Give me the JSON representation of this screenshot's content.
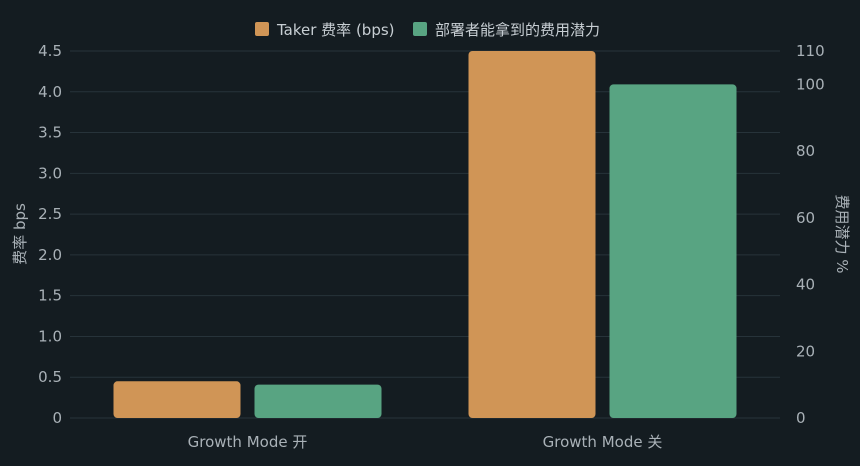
{
  "chart_data": {
    "type": "bar",
    "categories": [
      "Growth Mode 开",
      "Growth Mode 关"
    ],
    "series": [
      {
        "name": "Taker 费率 (bps)",
        "values": [
          0.45,
          4.5
        ],
        "axis": "left",
        "color": "#d09556"
      },
      {
        "name": "部署者能拿到的费用潜力",
        "values": [
          10,
          100
        ],
        "axis": "right",
        "color": "#58a482"
      }
    ],
    "y_left": {
      "label": "费率 bps",
      "range": [
        0,
        4.5
      ],
      "ticks": [
        "0",
        "0.5",
        "1.0",
        "1.5",
        "2.0",
        "2.5",
        "3.0",
        "3.5",
        "4.0",
        "4.5"
      ],
      "tick_values": [
        0,
        0.5,
        1.0,
        1.5,
        2.0,
        2.5,
        3.0,
        3.5,
        4.0,
        4.5
      ]
    },
    "y_right": {
      "label": "费用潜力 %",
      "range": [
        0,
        110
      ],
      "ticks": [
        "0",
        "20",
        "40",
        "60",
        "80",
        "100",
        "110"
      ],
      "tick_values": [
        0,
        20,
        40,
        60,
        80,
        100,
        110
      ]
    },
    "legend_position": "top-center",
    "grid": true
  }
}
